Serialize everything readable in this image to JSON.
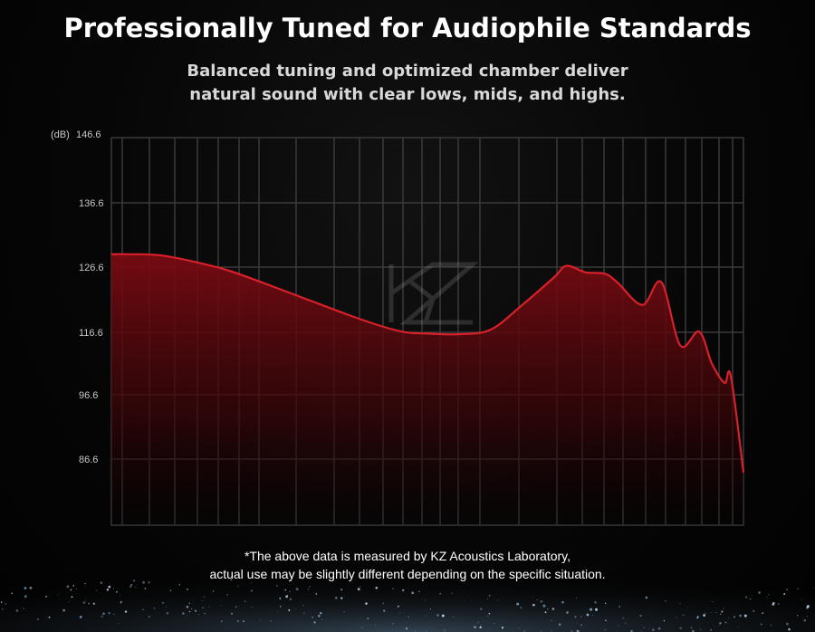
{
  "header": {
    "title": "Professionally Tuned for Audiophile Standards",
    "subtitle_line1": "Balanced tuning and optimized chamber deliver",
    "subtitle_line2": "natural sound with clear lows, mids, and highs."
  },
  "footer": {
    "note_line1": "*The above data is measured by KZ Acoustics Laboratory,",
    "note_line2": "actual use may be slightly different depending on the specific situation."
  },
  "watermark": "KZ",
  "colors": {
    "curve": "#d8202a",
    "fill_top": "#7a0b12",
    "grid": "#3a3a3a",
    "background": "#050505"
  },
  "chart_data": {
    "type": "area",
    "ylabel": "(dB)",
    "yticks": [
      "146.6",
      "136.6",
      "126.6",
      "116.6",
      "96.6",
      "86.6"
    ],
    "ylim": [
      82,
      146.6
    ],
    "grid": true,
    "x": [
      0,
      0.03,
      0.08,
      0.15,
      0.2,
      0.3,
      0.4,
      0.46,
      0.5,
      0.55,
      0.6,
      0.65,
      0.7,
      0.72,
      0.75,
      0.78,
      0.8,
      0.84,
      0.87,
      0.9,
      0.93,
      0.95,
      0.97,
      0.98,
      1.0
    ],
    "series": [
      {
        "values": [
          128.6,
          128.6,
          128.4,
          127.0,
          125.6,
          122.0,
          118.4,
          116.7,
          116.2,
          116.0,
          117.0,
          120.8,
          125.0,
          126.8,
          125.8,
          125.6,
          124.3,
          120.8,
          124.3,
          112.4,
          116.7,
          106.6,
          100.4,
          102.6,
          84.5
        ]
      }
    ]
  }
}
